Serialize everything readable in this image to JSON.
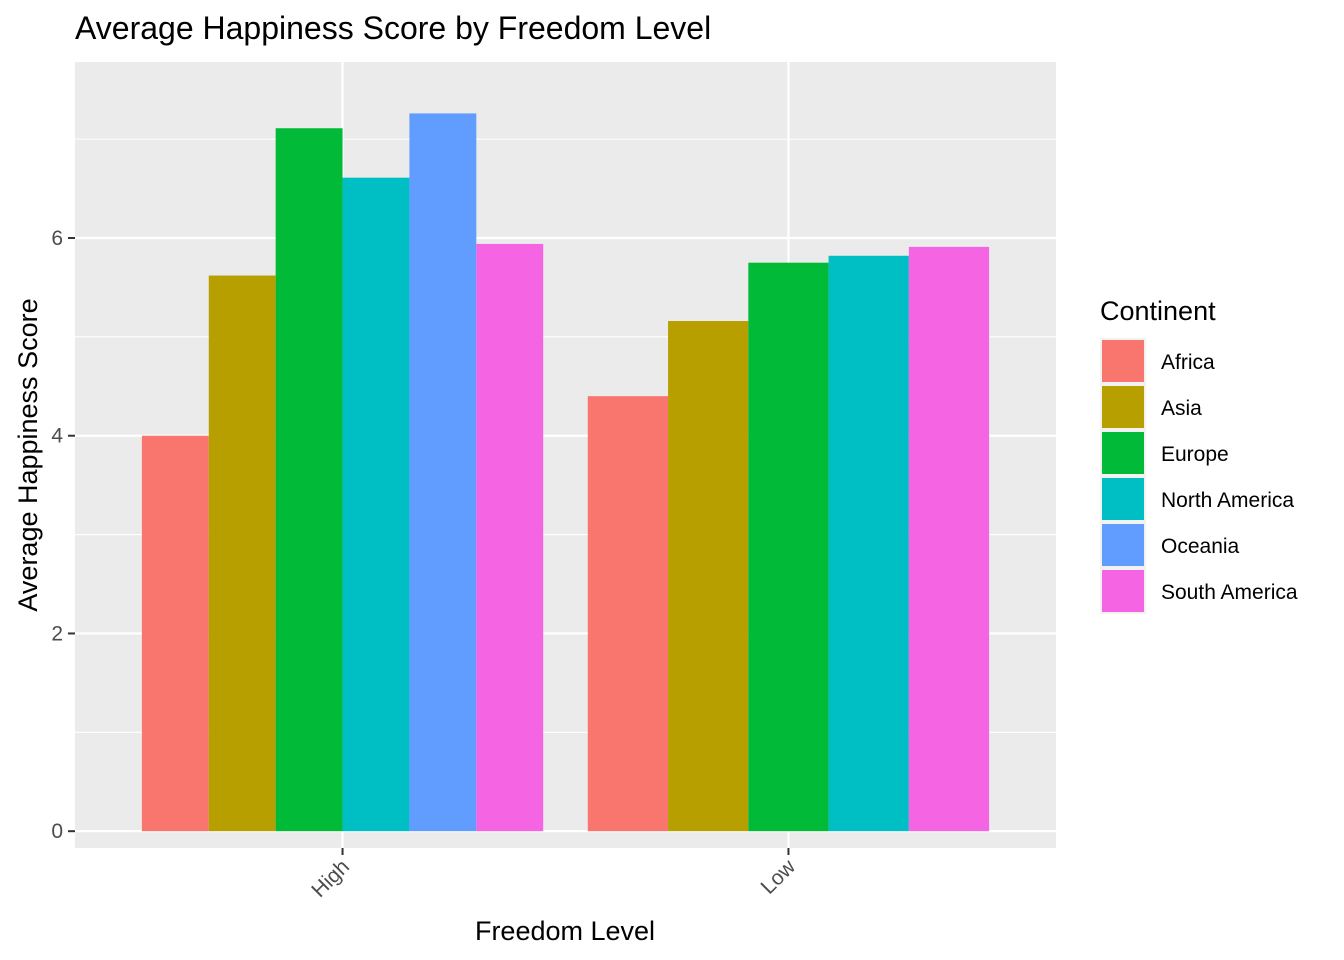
{
  "chart_data": {
    "type": "bar",
    "title": "Average Happiness Score by Freedom Level",
    "xlabel": "Freedom Level",
    "ylabel": "Average Happiness Score",
    "categories": [
      "High",
      "Low"
    ],
    "ylim": [
      -0.17,
      7.78
    ],
    "yticks": [
      0,
      2,
      4,
      6
    ],
    "grid": true,
    "legend": {
      "title": "Continent",
      "position": "right"
    },
    "series": [
      {
        "name": "Africa",
        "color": "#F8766D",
        "values": [
          4.0,
          4.4
        ]
      },
      {
        "name": "Asia",
        "color": "#B79F00",
        "values": [
          5.62,
          5.16
        ]
      },
      {
        "name": "Europe",
        "color": "#00BA38",
        "values": [
          7.11,
          5.75
        ]
      },
      {
        "name": "North America",
        "color": "#00BFC4",
        "values": [
          6.61,
          5.82
        ]
      },
      {
        "name": "Oceania",
        "color": "#619CFF",
        "values": [
          7.26,
          null
        ]
      },
      {
        "name": "South America",
        "color": "#F564E3",
        "values": [
          5.94,
          5.91
        ]
      }
    ]
  }
}
